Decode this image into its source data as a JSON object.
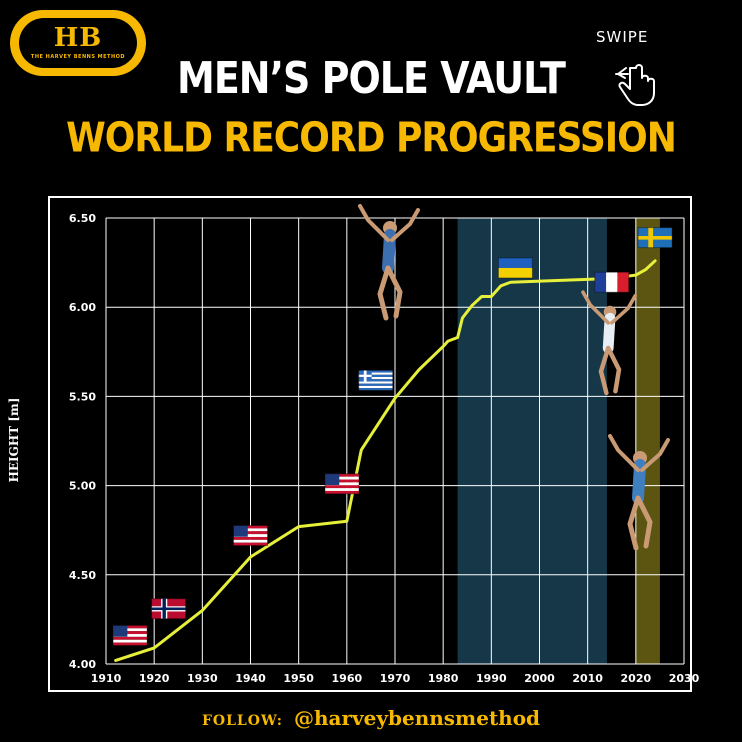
{
  "logo": {
    "mark": "HB",
    "tagline": "THE HARVEY BENNS METHOD"
  },
  "title": {
    "line1": "MEN’S POLE VAULT",
    "line2": "WORLD RECORD PROGRESSION"
  },
  "swipe": {
    "label": "SWIPE",
    "icon": "hand-swipe-icon"
  },
  "footer": {
    "follow_label": "FOLLOW:",
    "handle": "@harveybennsmethod"
  },
  "colors": {
    "accent": "#f6b800",
    "line": "#e6ef3a",
    "highlight_blue": "#1f4f66",
    "highlight_gold": "#6b6414"
  },
  "chart_data": {
    "type": "line",
    "xlabel": "",
    "ylabel": "HEIGHT [m]",
    "xlim": [
      1910,
      2030
    ],
    "ylim": [
      4.0,
      6.5
    ],
    "x_ticks": [
      1910,
      1920,
      1930,
      1940,
      1950,
      1960,
      1970,
      1980,
      1990,
      2000,
      2010,
      2020,
      2030
    ],
    "y_ticks": [
      4.0,
      4.5,
      5.0,
      5.5,
      6.0,
      6.5
    ],
    "y_tick_labels": [
      "4.00",
      "4.50",
      "5.00",
      "5.50",
      "6.00",
      "6.50"
    ],
    "grid": true,
    "series": [
      {
        "x": [
          1912,
          1920,
          1930,
          1940,
          1950,
          1960,
          1963,
          1970,
          1975,
          1980,
          1981,
          1983,
          1984,
          1986,
          1988,
          1990,
          1992,
          1994,
          2014,
          2020,
          2022,
          2024
        ],
        "y": [
          4.02,
          4.09,
          4.3,
          4.6,
          4.77,
          4.8,
          5.2,
          5.49,
          5.65,
          5.78,
          5.81,
          5.83,
          5.94,
          6.01,
          6.06,
          6.06,
          6.12,
          6.14,
          6.16,
          6.18,
          6.21,
          6.26
        ]
      }
    ],
    "highlight_bands": [
      {
        "from": 1983,
        "to": 2014,
        "kind": "blue"
      },
      {
        "from": 2020,
        "to": 2025,
        "kind": "gold"
      }
    ],
    "flags": [
      {
        "country": "USA",
        "x": 1915,
        "y": 4.16
      },
      {
        "country": "Norway",
        "x": 1923,
        "y": 4.31
      },
      {
        "country": "USA",
        "x": 1940,
        "y": 4.72
      },
      {
        "country": "USA",
        "x": 1959,
        "y": 5.01
      },
      {
        "country": "Greece",
        "x": 1966,
        "y": 5.59
      },
      {
        "country": "Ukraine",
        "x": 1995,
        "y": 6.22
      },
      {
        "country": "France",
        "x": 2015,
        "y": 6.14
      },
      {
        "country": "Sweden",
        "x": 2024,
        "y": 6.39
      }
    ]
  }
}
